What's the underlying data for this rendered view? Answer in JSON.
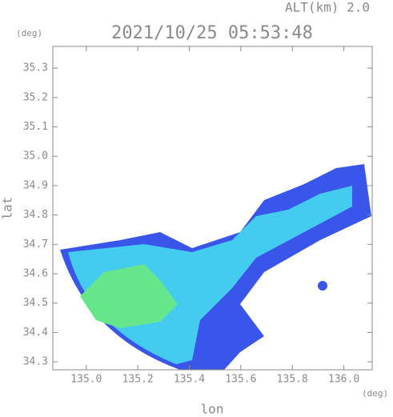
{
  "chart_data": {
    "type": "map",
    "title": "2021/10/25 05:53:48",
    "subtitle": "ALT(km) 2.0",
    "x_label": "lon",
    "y_label": "lat",
    "x_unit": "(deg)",
    "y_unit": "(deg)",
    "xlim": [
      134.87,
      136.11
    ],
    "ylim": [
      34.273,
      35.374
    ],
    "xticks": [
      {
        "value": 135.0,
        "label": "135.0"
      },
      135.2,
      135.4,
      135.6,
      135.8,
      {
        "value": 136.0,
        "label": "136.0"
      }
    ],
    "yticks": [
      34.3,
      34.4,
      34.5,
      34.6,
      34.7,
      34.8,
      34.9,
      {
        "value": 35.0,
        "label": "35.0"
      },
      35.1,
      35.2,
      35.3
    ]
  }
}
